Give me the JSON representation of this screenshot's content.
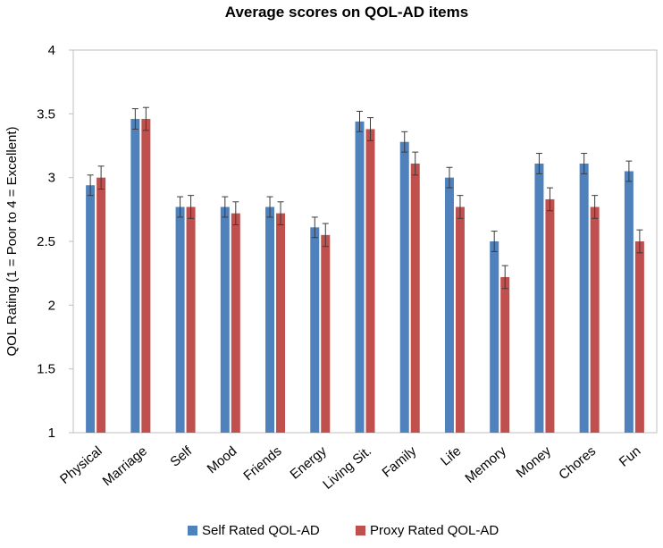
{
  "chart_data": {
    "type": "bar",
    "title": "Average scores on QOL-AD items",
    "xlabel": "",
    "ylabel": "QOL Rating (1 = Poor to 4 = Excellent)",
    "ylim": [
      1,
      4
    ],
    "yticks": [
      1,
      1.5,
      2,
      2.5,
      3,
      3.5,
      4
    ],
    "grid": false,
    "legend_position": "bottom",
    "categories": [
      "Physical",
      "Marriage",
      "Self",
      "Mood",
      "Friends",
      "Energy",
      "Living Sit.",
      "Family",
      "Life",
      "Memory",
      "Money",
      "Chores",
      "Fun"
    ],
    "series": [
      {
        "name": "Self Rated QOL-AD",
        "color": "#4F81BD",
        "values": [
          2.94,
          3.46,
          2.77,
          2.77,
          2.77,
          2.61,
          3.44,
          3.28,
          3.0,
          2.5,
          3.11,
          3.11,
          3.05
        ],
        "errors": [
          0.08,
          0.08,
          0.08,
          0.08,
          0.08,
          0.08,
          0.08,
          0.08,
          0.08,
          0.08,
          0.08,
          0.08,
          0.08
        ]
      },
      {
        "name": "Proxy Rated QOL-AD",
        "color": "#C0504D",
        "values": [
          3.0,
          3.46,
          2.77,
          2.72,
          2.72,
          2.55,
          3.38,
          3.11,
          2.77,
          2.22,
          2.83,
          2.77,
          2.5
        ],
        "errors": [
          0.09,
          0.09,
          0.09,
          0.09,
          0.09,
          0.09,
          0.09,
          0.09,
          0.09,
          0.09,
          0.09,
          0.09,
          0.09
        ]
      }
    ]
  }
}
